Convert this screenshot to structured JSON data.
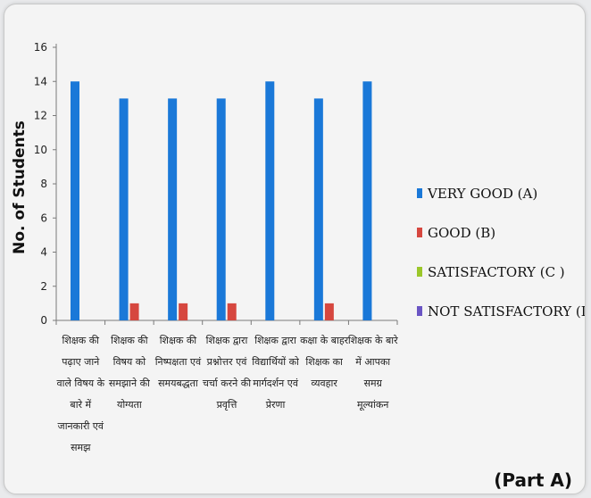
{
  "chart_data": {
    "type": "bar",
    "ylabel": "No. of Students",
    "xlabel": "",
    "ylim": [
      0,
      16
    ],
    "yticks": [
      0,
      2,
      4,
      6,
      8,
      10,
      12,
      14,
      16
    ],
    "grid": false,
    "legend_position": "right",
    "categories": [
      [
        "शिक्षक की",
        "पढ़ाए जाने",
        "वाले विषय के",
        "बारे में",
        "जानकारी एवं",
        "समझ"
      ],
      [
        "शिक्षक की",
        "विषय को",
        "समझाने की",
        "योग्यता"
      ],
      [
        "शिक्षक की",
        "निष्पक्षता एवं",
        "समयबद्धता"
      ],
      [
        "शिक्षक द्वारा",
        "प्रश्नोत्तर एवं",
        "चर्चा करने की",
        "प्रवृत्ति"
      ],
      [
        "शिक्षक द्वारा",
        "विद्यार्थियों को",
        "मार्गदर्शन एवं",
        "प्रेरणा"
      ],
      [
        "कक्षा के बाहर",
        "शिक्षक का",
        "व्यवहार"
      ],
      [
        "शिक्षक के बारे",
        "में आपका",
        "समग्र",
        "मूल्यांकन"
      ]
    ],
    "series": [
      {
        "name": "VERY GOOD (A)",
        "color": "#1a78d8",
        "values": [
          14,
          13,
          13,
          13,
          14,
          13,
          14
        ]
      },
      {
        "name": "GOOD (B)",
        "color": "#d6473f",
        "values": [
          0,
          1,
          1,
          1,
          0,
          1,
          0
        ]
      },
      {
        "name": "SATISFACTORY (C )",
        "color": "#9bc72a",
        "values": [
          0,
          0,
          0,
          0,
          0,
          0,
          0
        ]
      },
      {
        "name": "NOT SATISFACTORY (D)",
        "color": "#6a55c4",
        "values": [
          0,
          0,
          0,
          0,
          0,
          0,
          0
        ]
      }
    ]
  },
  "part_label": "(Part A)"
}
